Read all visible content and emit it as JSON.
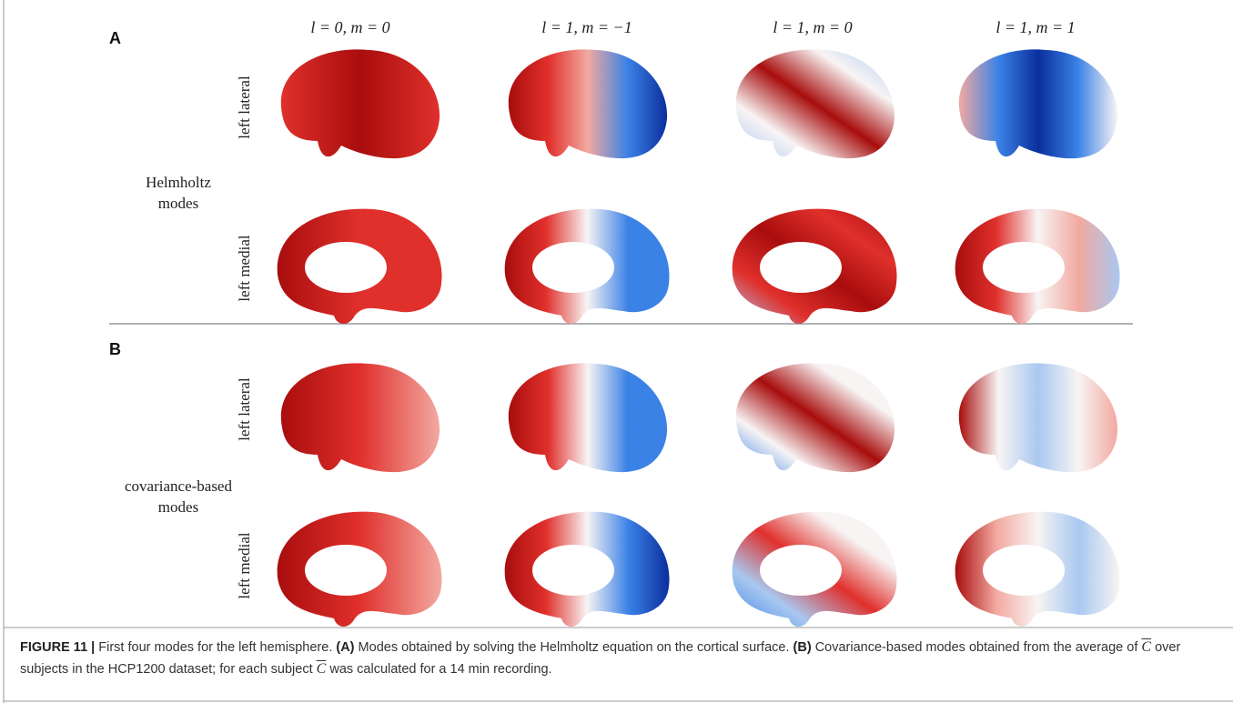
{
  "panel_a": {
    "label": "A",
    "columns": [
      "l = 0, m = 0",
      "l = 1, m = −1",
      "l = 1, m = 0",
      "l = 1, m = 1"
    ],
    "rows": [
      "left lateral",
      "left medial"
    ],
    "group_label": [
      "Helmholtz",
      "modes"
    ]
  },
  "panel_b": {
    "label": "B",
    "rows": [
      "left lateral",
      "left medial"
    ],
    "group_label": [
      "covariance-based",
      "modes"
    ]
  },
  "caption": {
    "figure_label": "FIGURE 11 |",
    "intro": "First four modes for the left hemisphere.",
    "a_label": "(A)",
    "a_text": "Modes obtained by solving the Helmholtz equation on the cortical surface.",
    "b_label": "(B)",
    "b_text_1": "Covariance-based modes obtained from the average of",
    "symbol": "C",
    "b_text_2": "over subjects in the HCP1200 dataset; for each subject",
    "b_text_3": "was calculated for a 14 min recording."
  }
}
